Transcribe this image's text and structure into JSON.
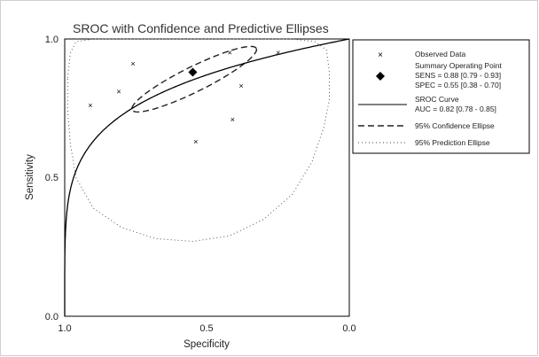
{
  "chart_data": {
    "type": "scatter",
    "title": "SROC with Confidence and Predictive Ellipses",
    "xlabel": "Specificity",
    "ylabel": "Sensitivity",
    "x_reversed": true,
    "xlim": [
      1.0,
      0.0
    ],
    "ylim": [
      0.0,
      1.0
    ],
    "x_ticks": [
      "1.0",
      "0.5",
      "0.0"
    ],
    "y_ticks": [
      "0.0",
      "0.5",
      "1.0"
    ],
    "observed_data": [
      {
        "specificity": 0.91,
        "sensitivity": 0.76
      },
      {
        "specificity": 0.81,
        "sensitivity": 0.81
      },
      {
        "specificity": 0.76,
        "sensitivity": 0.91
      },
      {
        "specificity": 0.54,
        "sensitivity": 0.63
      },
      {
        "specificity": 0.41,
        "sensitivity": 0.71
      },
      {
        "specificity": 0.38,
        "sensitivity": 0.83
      },
      {
        "specificity": 0.42,
        "sensitivity": 0.95
      },
      {
        "specificity": 0.25,
        "sensitivity": 0.95
      }
    ],
    "summary_point": {
      "specificity": 0.55,
      "sensitivity": 0.88
    },
    "sroc_curve": {
      "auc": 0.82
    },
    "legend": {
      "position": "right",
      "observed": "Observed Data",
      "summary_title": "Summary Operating Point",
      "summary_sens": "SENS = 0.88 [0.79 - 0.93]",
      "summary_spec": "SPEC = 0.55 [0.38 - 0.70]",
      "sroc_title": "SROC Curve",
      "sroc_auc": "AUC = 0.82 [0.78 - 0.85]",
      "confidence": "95% Confidence Ellipse",
      "prediction": "95% Prediction Ellipse"
    },
    "colors": {
      "line": "#000000",
      "marker": "#000000",
      "ellipse": "#555555"
    }
  }
}
